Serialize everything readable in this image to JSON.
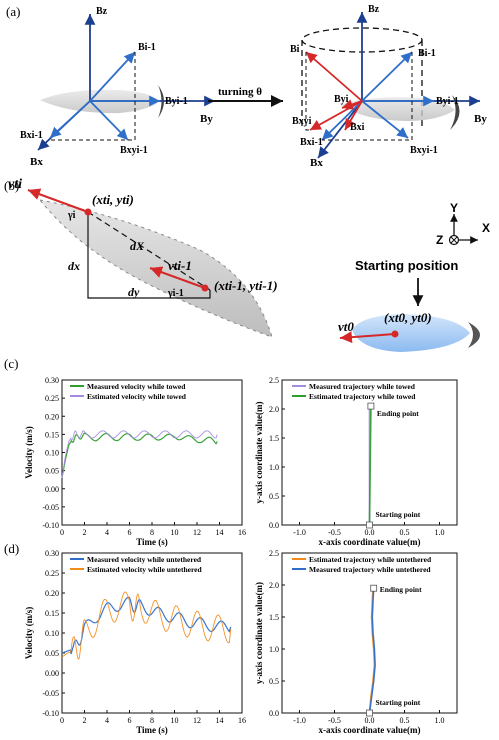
{
  "panel_labels": [
    "(a)",
    "(b)",
    "(c)",
    "(d)"
  ],
  "panel_a": {
    "axis_labels": {
      "bz": "Bz",
      "bi1": "Bi-1",
      "by": "By",
      "byi1": "Byi-1",
      "bx": "Bx",
      "bxi1": "Bxi-1",
      "bxyi1": "Bxyi-1",
      "bi": "Bi",
      "byi": "Byi",
      "bxyi": "Bxyi",
      "bxi": "Bxi"
    },
    "turning_label": "turning θ"
  },
  "panel_b": {
    "v_ti": "vti",
    "point_ti": "(xti, yti)",
    "v_ti1": "vti-1",
    "point_ti1": "(xti-1, yti-1)",
    "gamma_i": "γi",
    "gamma_i1": "γi-1",
    "dX": "dX",
    "dx": "dx",
    "dy": "dy",
    "starting_position": "Starting position",
    "v_t0": "vt0",
    "point_t0": "(xt0, yt0)",
    "coord_y": "Y",
    "coord_z": "Z",
    "coord_x": "X"
  },
  "colors": {
    "green": "#2e9e2e",
    "purple": "#a58be0",
    "blue": "#2f6fc9",
    "orange": "#f28c1e",
    "red": "#d62828",
    "navy": "#1d3f8f"
  },
  "chart_data": [
    {
      "id": "c-left",
      "type": "line",
      "xlabel": "Time (s)",
      "ylabel": "Velocity (m/s)",
      "xlim": [
        0,
        16
      ],
      "ylim": [
        -0.1,
        0.3
      ],
      "xticks": [
        "0",
        "2",
        "4",
        "6",
        "8",
        "10",
        "12",
        "14",
        "16"
      ],
      "yticks": [
        "-0.10",
        "-0.05",
        "0.00",
        "0.05",
        "0.10",
        "0.15",
        "0.20",
        "0.25",
        "0.30"
      ],
      "legend_position": "top-left",
      "series": [
        {
          "name": "Measured velocity while towed",
          "color": "#2e9e2e",
          "x": [
            0,
            0.3,
            0.6,
            0.9,
            1.2,
            1.6,
            2,
            3,
            4,
            5,
            6,
            7,
            8,
            9,
            10,
            11,
            12,
            13,
            13.8
          ],
          "y": [
            0.03,
            0.08,
            0.12,
            0.135,
            0.14,
            0.145,
            0.145,
            0.14,
            0.145,
            0.14,
            0.145,
            0.14,
            0.145,
            0.14,
            0.145,
            0.14,
            0.135,
            0.135,
            0.13
          ]
        },
        {
          "name": "Estimated velocity while towed",
          "color": "#a58be0",
          "x": [
            0,
            0.3,
            0.6,
            0.9,
            1.2,
            1.6,
            2,
            3,
            4,
            5,
            6,
            7,
            8,
            9,
            10,
            11,
            12,
            13,
            13.8
          ],
          "y": [
            0.03,
            0.09,
            0.13,
            0.145,
            0.15,
            0.15,
            0.15,
            0.15,
            0.15,
            0.15,
            0.15,
            0.15,
            0.15,
            0.15,
            0.15,
            0.15,
            0.15,
            0.15,
            0.15
          ]
        }
      ]
    },
    {
      "id": "c-right",
      "type": "line",
      "xlabel": "x-axis coordinate value(m)",
      "ylabel": "y-axis coordinate value(m)",
      "xlim": [
        -1.25,
        1.25
      ],
      "ylim": [
        0.0,
        2.5
      ],
      "xticks": [
        "-1.0",
        "-0.5",
        "0.0",
        "0.5",
        "1.0"
      ],
      "yticks": [
        "0.0",
        "0.5",
        "1.0",
        "1.5",
        "2.0",
        "2.5"
      ],
      "legend_position": "top",
      "annotations": {
        "end": "Ending point",
        "start": "Starting point"
      },
      "series": [
        {
          "name": "Measured trajectory while towed",
          "color": "#a58be0",
          "x": [
            0.0,
            0.0,
            0.0
          ],
          "y": [
            0.0,
            1.0,
            2.05
          ]
        },
        {
          "name": "Estimated trajectory while towed",
          "color": "#2e9e2e",
          "x": [
            0.0,
            0.01,
            0.02
          ],
          "y": [
            0.0,
            1.0,
            2.05
          ]
        }
      ]
    },
    {
      "id": "d-left",
      "type": "line",
      "xlabel": "Time (s)",
      "ylabel": "Velocity (m/s)",
      "xlim": [
        0,
        16
      ],
      "ylim": [
        -0.1,
        0.3
      ],
      "xticks": [
        "0",
        "2",
        "4",
        "6",
        "8",
        "10",
        "12",
        "14",
        "16"
      ],
      "yticks": [
        "-0.10",
        "-0.05",
        "0.00",
        "0.05",
        "0.10",
        "0.15",
        "0.20",
        "0.25",
        "0.30"
      ],
      "legend_position": "top-left",
      "series": [
        {
          "name": "Measured velocity while untethered",
          "color": "#2f6fc9",
          "x": [
            0,
            0.5,
            1,
            1.5,
            2,
            3,
            4,
            5,
            6,
            6.5,
            7,
            8,
            9,
            10,
            11,
            12,
            13,
            14,
            15
          ],
          "y": [
            0.05,
            0.055,
            0.06,
            0.08,
            0.11,
            0.14,
            0.16,
            0.17,
            0.175,
            0.165,
            0.17,
            0.155,
            0.145,
            0.14,
            0.13,
            0.125,
            0.12,
            0.115,
            0.115
          ]
        },
        {
          "name": "Estimated velocity while untethered",
          "color": "#f28c1e",
          "x": [
            0,
            0.5,
            1,
            1.5,
            2,
            3,
            4,
            5,
            6,
            6.5,
            7,
            8,
            9,
            10,
            11,
            12,
            13,
            14,
            15
          ],
          "y": [
            0.04,
            0.05,
            0.055,
            0.07,
            0.1,
            0.13,
            0.155,
            0.165,
            0.17,
            0.16,
            0.165,
            0.15,
            0.14,
            0.135,
            0.125,
            0.12,
            0.115,
            0.11,
            0.11
          ]
        }
      ]
    },
    {
      "id": "d-right",
      "type": "line",
      "xlabel": "x-axis coordinate value(m)",
      "ylabel": "y-axis coordinate value(m)",
      "xlim": [
        -1.25,
        1.25
      ],
      "ylim": [
        0.0,
        2.5
      ],
      "xticks": [
        "-1.0",
        "-0.5",
        "0.0",
        "0.5",
        "1.0"
      ],
      "yticks": [
        "0.0",
        "0.5",
        "1.0",
        "1.5",
        "2.0",
        "2.5"
      ],
      "legend_position": "top",
      "annotations": {
        "end": "Ending point",
        "start": "Starting point"
      },
      "series": [
        {
          "name": "Estimated trajectory while untethered",
          "color": "#f28c1e",
          "x": [
            0.0,
            0.02,
            0.05,
            0.07,
            0.06,
            0.04,
            0.03,
            0.04,
            0.05
          ],
          "y": [
            0.0,
            0.25,
            0.5,
            0.75,
            1.0,
            1.25,
            1.5,
            1.75,
            1.95
          ]
        },
        {
          "name": "Measured trajectory while untethered",
          "color": "#2f6fc9",
          "x": [
            0.0,
            0.03,
            0.06,
            0.08,
            0.07,
            0.05,
            0.04,
            0.05,
            0.06
          ],
          "y": [
            0.0,
            0.25,
            0.5,
            0.75,
            1.0,
            1.25,
            1.5,
            1.75,
            1.95
          ]
        }
      ]
    }
  ]
}
